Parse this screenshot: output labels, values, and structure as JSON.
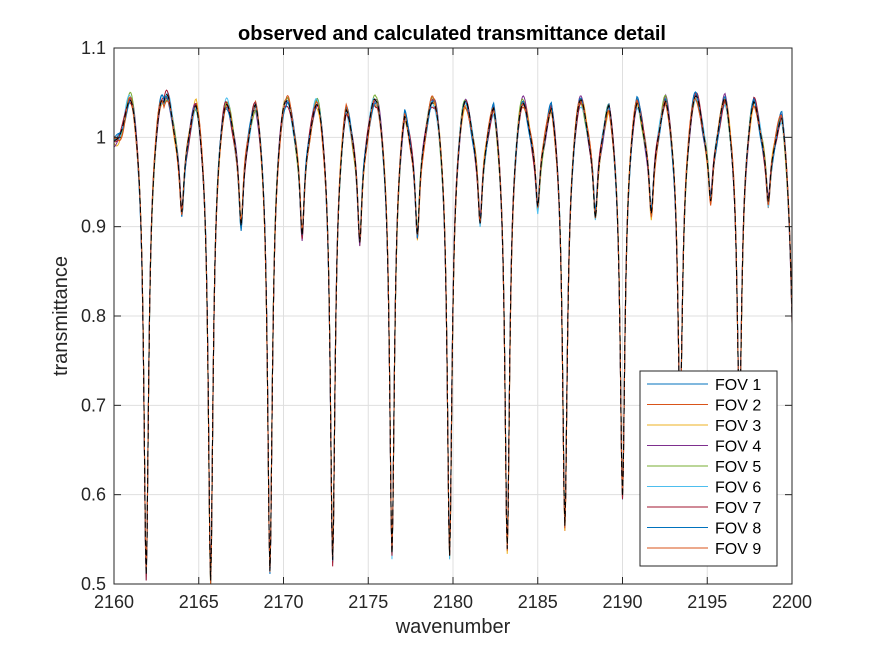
{
  "chart_data": {
    "type": "line",
    "title": "observed and calculated transmittance detail",
    "xlabel": "wavenumber",
    "ylabel": "transmittance",
    "xlim": [
      2160,
      2200
    ],
    "ylim": [
      0.5,
      1.1
    ],
    "xticks": [
      2160,
      2165,
      2170,
      2175,
      2180,
      2185,
      2190,
      2195,
      2200
    ],
    "yticks": [
      0.5,
      0.6,
      0.7,
      0.8,
      0.9,
      1,
      1.1
    ],
    "ytick_labels": [
      "0.5",
      "0.6",
      "0.7",
      "0.8",
      "0.9",
      "1",
      "1.1"
    ],
    "grid": true,
    "legend_position": "bottom-right",
    "baseline": 1.0,
    "features": [
      {
        "x": 2161.9,
        "y": 0.51,
        "w": 0.33
      },
      {
        "x": 2164.0,
        "y": 0.925,
        "w": 0.3
      },
      {
        "x": 2165.7,
        "y": 0.505,
        "w": 0.33
      },
      {
        "x": 2167.5,
        "y": 0.91,
        "w": 0.3
      },
      {
        "x": 2169.2,
        "y": 0.52,
        "w": 0.33
      },
      {
        "x": 2171.1,
        "y": 0.897,
        "w": 0.3
      },
      {
        "x": 2172.9,
        "y": 0.53,
        "w": 0.33
      },
      {
        "x": 2174.5,
        "y": 0.893,
        "w": 0.3
      },
      {
        "x": 2176.4,
        "y": 0.538,
        "w": 0.33
      },
      {
        "x": 2177.9,
        "y": 0.9,
        "w": 0.3
      },
      {
        "x": 2179.8,
        "y": 0.535,
        "w": 0.33
      },
      {
        "x": 2181.6,
        "y": 0.915,
        "w": 0.3
      },
      {
        "x": 2183.2,
        "y": 0.543,
        "w": 0.33
      },
      {
        "x": 2185.0,
        "y": 0.93,
        "w": 0.3
      },
      {
        "x": 2186.6,
        "y": 0.568,
        "w": 0.33
      },
      {
        "x": 2188.4,
        "y": 0.92,
        "w": 0.3
      },
      {
        "x": 2190.0,
        "y": 0.602,
        "w": 0.33
      },
      {
        "x": 2191.7,
        "y": 0.92,
        "w": 0.3
      },
      {
        "x": 2193.4,
        "y": 0.69,
        "w": 0.33
      },
      {
        "x": 2195.2,
        "y": 0.937,
        "w": 0.3
      },
      {
        "x": 2196.9,
        "y": 0.69,
        "w": 0.33
      },
      {
        "x": 2198.6,
        "y": 0.937,
        "w": 0.3
      },
      {
        "x": 2200.2,
        "y": 0.66,
        "w": 0.5
      }
    ],
    "series": [
      {
        "name": "FOV 1",
        "color": "#0072BD"
      },
      {
        "name": "FOV 2",
        "color": "#D95319"
      },
      {
        "name": "FOV 3",
        "color": "#EDB120"
      },
      {
        "name": "FOV 4",
        "color": "#7E2F8E"
      },
      {
        "name": "FOV 5",
        "color": "#77AC30"
      },
      {
        "name": "FOV 6",
        "color": "#4DBEEE"
      },
      {
        "name": "FOV 7",
        "color": "#A2142F"
      },
      {
        "name": "FOV 8",
        "color": "#0072BD"
      },
      {
        "name": "FOV 9",
        "color": "#D95319"
      }
    ],
    "overlay": {
      "color": "#000000",
      "dash": "dashed"
    }
  }
}
